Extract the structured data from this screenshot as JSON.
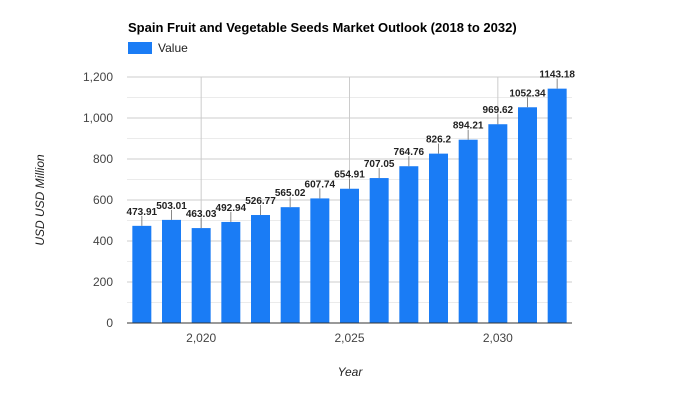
{
  "chart_data": {
    "type": "bar",
    "title": "Spain Fruit and Vegetable Seeds Market Outlook (2018 to 2032)",
    "xlabel": "Year",
    "ylabel": "USD USD Million",
    "categories": [
      2018,
      2019,
      2020,
      2021,
      2022,
      2023,
      2024,
      2025,
      2026,
      2027,
      2028,
      2029,
      2030,
      2031,
      2032
    ],
    "series": [
      {
        "name": "Value",
        "color": "#1a7cf5",
        "values": [
          473.91,
          503.01,
          463.03,
          492.94,
          526.77,
          565.02,
          607.74,
          654.91,
          707.05,
          764.76,
          826.2,
          894.21,
          969.62,
          1052.34,
          1143.18
        ]
      }
    ],
    "data_labels": [
      "473.91",
      "503.01",
      "463.03",
      "492.94",
      "526.77",
      "565.02",
      "607.74",
      "654.91",
      "707.05",
      "764.76",
      "826.2",
      "894.21",
      "969.62",
      "1052.34",
      "1143.18"
    ],
    "ylim": [
      0,
      1200
    ],
    "yticks": [
      0,
      200,
      400,
      600,
      800,
      1000,
      1200
    ],
    "ytick_labels": [
      "0",
      "200",
      "400",
      "600",
      "800",
      "1,000",
      "1,200"
    ],
    "xticks": [
      2020,
      2025,
      2030
    ],
    "xtick_labels": [
      "2,020",
      "2,025",
      "2,030"
    ],
    "xlim": [
      2017.5,
      2032.5
    ],
    "grid": true,
    "legend_position": "top-left"
  }
}
